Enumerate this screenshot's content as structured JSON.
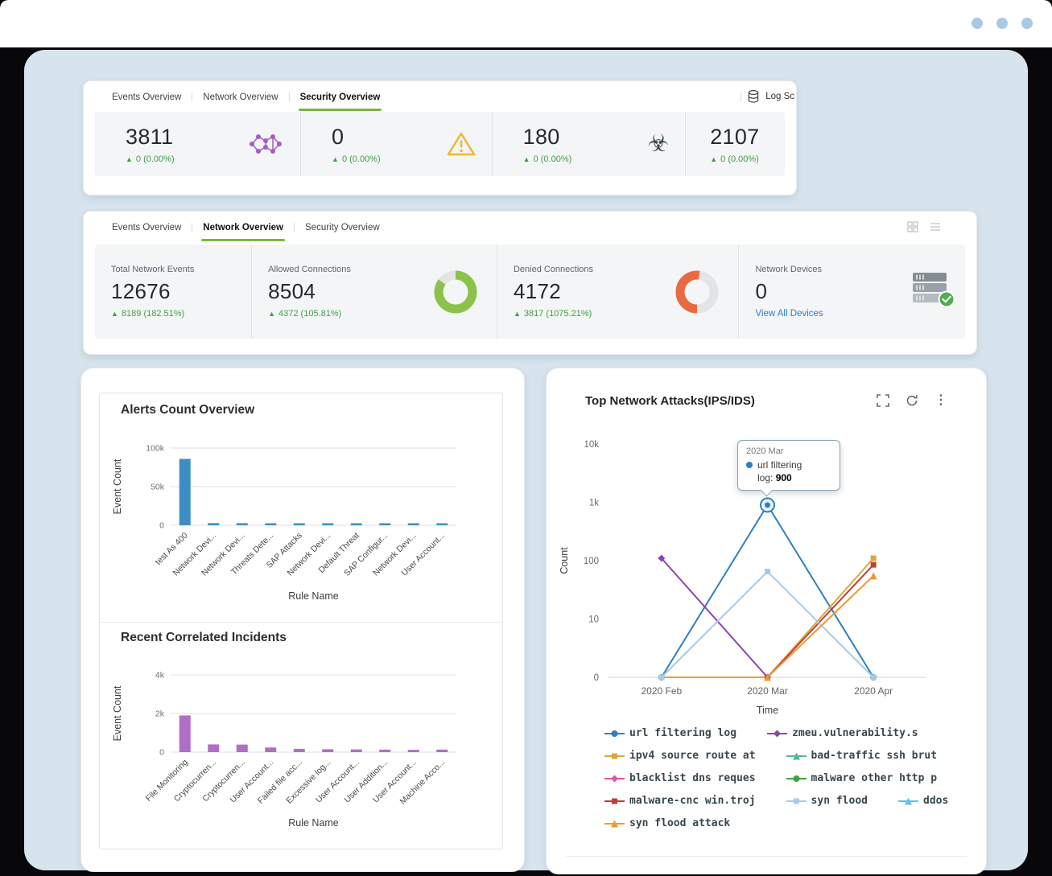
{
  "glyphs": {
    "up_arrow": "▲",
    "biohazard": "☣",
    "ellipsis": "⋮"
  },
  "colors": {
    "accent_green": "#7cb73e",
    "delta_green": "#3fa044",
    "link_blue": "#2b7bd4",
    "panel_blue": "#d7e4ee"
  },
  "security_card": {
    "tabs": [
      {
        "label": "Events Overview",
        "active": false
      },
      {
        "label": "Network Overview",
        "active": false
      },
      {
        "label": "Security Overview",
        "active": true
      }
    ],
    "log_source_label": "Log Sc",
    "stats": [
      {
        "value": "3811",
        "delta": "0 (0.00%)"
      },
      {
        "value": "0",
        "delta": "0 (0.00%)"
      },
      {
        "value": "180",
        "delta": "0 (0.00%)"
      },
      {
        "value": "2107",
        "delta": "0 (0.00%)"
      }
    ]
  },
  "network_card": {
    "tabs": [
      {
        "label": "Events Overview",
        "active": false
      },
      {
        "label": "Network Overview",
        "active": true
      },
      {
        "label": "Security Overview",
        "active": false
      }
    ],
    "stats": [
      {
        "label": "Total Network Events",
        "value": "12676",
        "delta": "8189 (182.51%)"
      },
      {
        "label": "Allowed Connections",
        "value": "8504",
        "delta": "4372 (105.81%)",
        "donut": {
          "color": "#8bc34a",
          "percent": 85,
          "rotate": -90
        }
      },
      {
        "label": "Denied Connections",
        "value": "4172",
        "delta": "3817 (1075.21%)",
        "donut": {
          "color": "#e96a41",
          "percent": 52,
          "rotate": 90
        }
      },
      {
        "label": "Network Devices",
        "value": "0",
        "link": "View All Devices"
      }
    ]
  },
  "alerts_card": {
    "title1": "Alerts Count Overview",
    "title2": "Recent Correlated Incidents"
  },
  "attacks_card": {
    "title": "Top Network Attacks(IPS/IDS)",
    "tooltip": {
      "x": "2020 Mar",
      "series_line1": "url filtering",
      "series_line2": "log:",
      "value": "900"
    }
  },
  "chart_data": [
    {
      "id": "alerts_count",
      "type": "bar",
      "title": "Alerts Count Overview",
      "xlabel": "Rule Name",
      "ylabel": "Event Count",
      "bar_color": "#3d8ec5",
      "ylim": [
        0,
        100000
      ],
      "grid": true,
      "yticks": [
        {
          "v": 0,
          "label": "0"
        },
        {
          "v": 50000,
          "label": "50k"
        },
        {
          "v": 100000,
          "label": "100k"
        }
      ],
      "categories": [
        "test As 400",
        "Network Devi...",
        "Network Devi...",
        "Threats Dete...",
        "SAP Attacks",
        "Network Devi...",
        "Default Threat",
        "SAP Configur...",
        "Network Devi...",
        "User Account..."
      ],
      "values": [
        86000,
        2800,
        2700,
        2500,
        2400,
        2300,
        2300,
        2200,
        2100,
        2100
      ]
    },
    {
      "id": "correlated_incidents",
      "type": "bar",
      "title": "Recent Correlated Incidents",
      "xlabel": "Rule Name",
      "ylabel": "Event Count",
      "bar_color": "#b06fc6",
      "ylim": [
        0,
        4000
      ],
      "grid": true,
      "yticks": [
        {
          "v": 0,
          "label": "0"
        },
        {
          "v": 2000,
          "label": "2k"
        },
        {
          "v": 4000,
          "label": "4k"
        }
      ],
      "categories": [
        "File Monitoring",
        "Cryptocurren...",
        "Cryptocurren...",
        "User Account...",
        "Failed file acc...",
        "Excessive log...",
        "User Account...",
        "User Addition...",
        "User Account...",
        "Machine Acco..."
      ],
      "values": [
        1900,
        400,
        390,
        240,
        170,
        150,
        140,
        130,
        120,
        130
      ]
    },
    {
      "id": "top_network_attacks",
      "type": "line",
      "title": "Top Network Attacks(IPS/IDS)",
      "xlabel": "Time",
      "ylabel": "Count",
      "yscale": "log",
      "legend_position": "bottom",
      "x": [
        "2020 Feb",
        "2020 Mar",
        "2020 Apr"
      ],
      "yticks": [
        {
          "v": 0,
          "label": "0"
        },
        {
          "v": 10,
          "label": "10"
        },
        {
          "v": 100,
          "label": "100"
        },
        {
          "v": 1000,
          "label": "1k"
        },
        {
          "v": 10000,
          "label": "10k"
        }
      ],
      "series": [
        {
          "name": "url filtering log",
          "color": "#2e7fc1",
          "symbol": "circle",
          "values": [
            0,
            900,
            0
          ],
          "emphasis": 1
        },
        {
          "name": "zmeu.vulnerability.s",
          "color": "#8e44ad",
          "symbol": "diamond",
          "values": [
            110,
            0,
            null
          ]
        },
        {
          "name": "ipv4 source route at",
          "color": "#dca63e",
          "symbol": "rect",
          "values": [
            0,
            0,
            110
          ]
        },
        {
          "name": "bad-traffic ssh brut",
          "color": "#53b79a",
          "symbol": "triangle",
          "values": null
        },
        {
          "name": "blacklist dns reques",
          "color": "#e8539f",
          "symbol": "diamond",
          "values": null
        },
        {
          "name": "malware other http p",
          "color": "#43a047",
          "symbol": "circle",
          "values": null
        },
        {
          "name": "malware-cnc win.troj",
          "color": "#bb4137",
          "symbol": "rect",
          "values": [
            null,
            0,
            85
          ]
        },
        {
          "name": "syn flood",
          "color": "#a6cbe8",
          "symbol": "rect",
          "values": [
            0,
            65,
            0
          ]
        },
        {
          "name": "ddos",
          "color": "#5fc3e6",
          "symbol": "triangle",
          "values": null
        },
        {
          "name": "syn flood attack",
          "color": "#ef9735",
          "symbol": "triangle",
          "values": [
            null,
            0,
            55
          ]
        }
      ],
      "tooltip": {
        "x": "2020 Mar",
        "series": "url filtering log",
        "value": 900
      }
    }
  ]
}
